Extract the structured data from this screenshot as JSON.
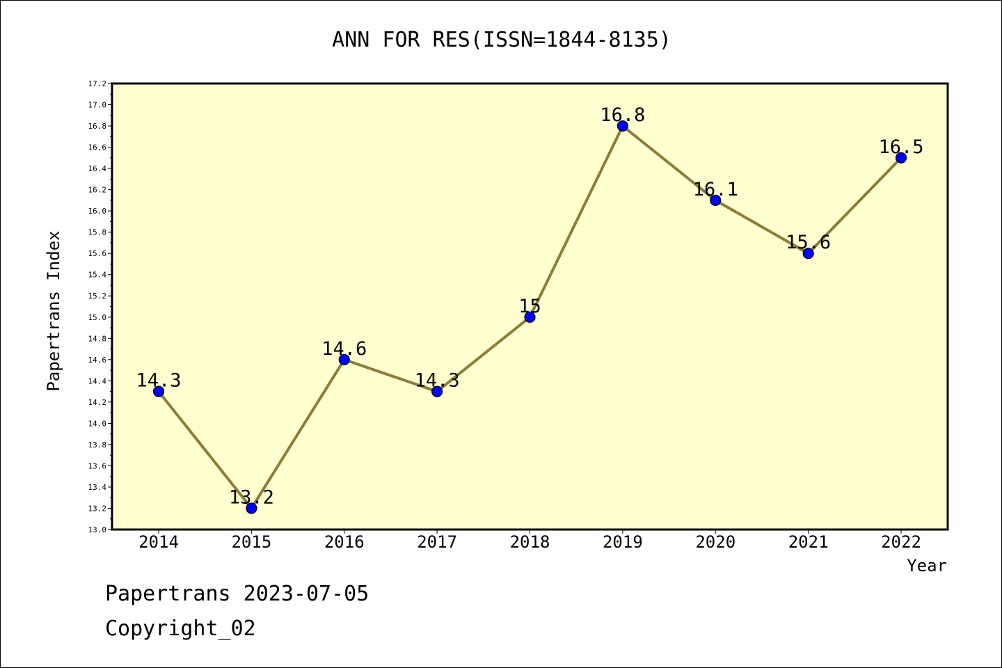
{
  "chart_data": {
    "type": "line",
    "title": "ANN FOR RES(ISSN=1844-8135)",
    "xlabel": "Year",
    "ylabel": "Papertrans Index",
    "categories": [
      "2014",
      "2015",
      "2016",
      "2017",
      "2018",
      "2019",
      "2020",
      "2021",
      "2022"
    ],
    "series": [
      {
        "values": [
          14.3,
          13.2,
          14.6,
          14.3,
          15.0,
          16.8,
          16.1,
          15.6,
          16.5
        ],
        "data_labels": [
          "14.3",
          "13.2",
          "14.6",
          "14.3",
          "15",
          "16.8",
          "16.1",
          "15.6",
          "16.5"
        ]
      }
    ],
    "ylim": [
      13.0,
      17.2
    ],
    "yticks": [
      "13.0",
      "13.2",
      "13.4",
      "13.6",
      "13.8",
      "14.0",
      "14.2",
      "14.4",
      "14.6",
      "14.8",
      "15.0",
      "15.2",
      "15.4",
      "15.6",
      "15.8",
      "16.0",
      "16.2",
      "16.4",
      "16.6",
      "16.8",
      "17.0",
      "17.2"
    ],
    "grid": false,
    "legend": "none",
    "colors": {
      "plot_background": "#ffffd0",
      "line": "#8b7d38",
      "marker_fill": "#0000ff",
      "marker_edge": "#000000"
    }
  },
  "footer": {
    "source": "Papertrans 2023-07-05",
    "copyright": "Copyright_02"
  }
}
